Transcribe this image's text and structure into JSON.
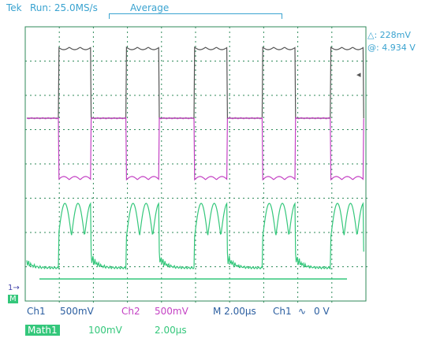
{
  "header": {
    "brand": "Tek",
    "run_status": "Run: 25.0MS/s",
    "acq_mode": "Average"
  },
  "cursor_readout": {
    "delta": "△: 228mV",
    "at": "@: 4.934 V"
  },
  "markers": {
    "ch1_ground": "1→",
    "math_marker": "M"
  },
  "status_row": {
    "ch1_name": "Ch1",
    "ch1_scale": "500mV",
    "ch2_name": "Ch2",
    "ch2_scale": "500mV",
    "timebase": "M 2.00µs",
    "trig_source": "Ch1",
    "trig_slope": "∿",
    "trig_level": "0 V"
  },
  "math_row": {
    "name": "Math1",
    "scale": "100mV",
    "time": "2.00µs"
  },
  "colors": {
    "ch1": "#555555",
    "ch2": "#c442c4",
    "math": "#34c77b",
    "grid": "#2f8a5a",
    "text": "#3aa3d0"
  }
}
